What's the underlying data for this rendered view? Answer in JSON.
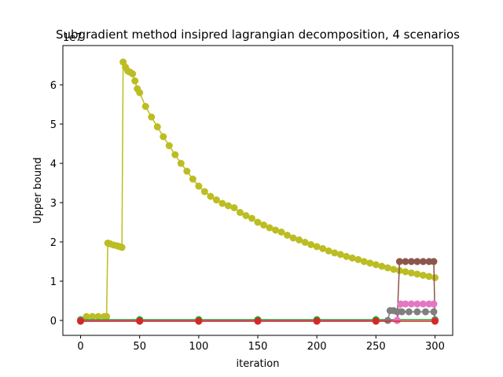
{
  "chart_data": {
    "type": "line",
    "title": "Subgradient method insipred lagrangian decomposition, 4 scenarios",
    "xlabel": "iteration",
    "ylabel": "Upper bound",
    "y_offset_label": "1e7",
    "xlim": [
      -15,
      315
    ],
    "ylim": [
      -0.38,
      7.0
    ],
    "xticks": [
      0,
      50,
      100,
      150,
      200,
      250,
      300
    ],
    "yticks": [
      0,
      1,
      2,
      3,
      4,
      5,
      6
    ],
    "grid": false,
    "series": [
      {
        "color": "#bcbd22",
        "marker": "o",
        "points": [
          [
            0,
            0.0
          ],
          [
            5,
            0.1
          ],
          [
            10,
            0.1
          ],
          [
            15,
            0.1
          ],
          [
            20,
            0.1
          ],
          [
            22,
            0.1
          ],
          [
            23,
            1.97
          ],
          [
            25,
            1.95
          ],
          [
            28,
            1.92
          ],
          [
            31,
            1.9
          ],
          [
            33,
            1.88
          ],
          [
            35,
            1.86
          ],
          [
            36,
            6.58
          ],
          [
            38,
            6.45
          ],
          [
            40,
            6.35
          ],
          [
            42,
            6.32
          ],
          [
            44,
            6.28
          ],
          [
            46,
            6.1
          ],
          [
            48,
            5.9
          ],
          [
            50,
            5.8
          ],
          [
            55,
            5.45
          ],
          [
            60,
            5.18
          ],
          [
            65,
            4.93
          ],
          [
            70,
            4.68
          ],
          [
            75,
            4.45
          ],
          [
            80,
            4.22
          ],
          [
            85,
            4.0
          ],
          [
            90,
            3.8
          ],
          [
            95,
            3.6
          ],
          [
            100,
            3.42
          ],
          [
            105,
            3.28
          ],
          [
            110,
            3.16
          ],
          [
            115,
            3.07
          ],
          [
            120,
            2.98
          ],
          [
            125,
            2.92
          ],
          [
            130,
            2.87
          ],
          [
            135,
            2.75
          ],
          [
            140,
            2.67
          ],
          [
            145,
            2.6
          ],
          [
            150,
            2.5
          ],
          [
            155,
            2.43
          ],
          [
            160,
            2.36
          ],
          [
            165,
            2.3
          ],
          [
            170,
            2.25
          ],
          [
            175,
            2.17
          ],
          [
            180,
            2.1
          ],
          [
            185,
            2.05
          ],
          [
            190,
            1.99
          ],
          [
            195,
            1.93
          ],
          [
            200,
            1.88
          ],
          [
            205,
            1.83
          ],
          [
            210,
            1.77
          ],
          [
            215,
            1.72
          ],
          [
            220,
            1.68
          ],
          [
            225,
            1.63
          ],
          [
            230,
            1.59
          ],
          [
            235,
            1.55
          ],
          [
            240,
            1.5
          ],
          [
            245,
            1.46
          ],
          [
            250,
            1.42
          ],
          [
            255,
            1.38
          ],
          [
            260,
            1.34
          ],
          [
            265,
            1.3
          ],
          [
            270,
            1.27
          ],
          [
            275,
            1.24
          ],
          [
            280,
            1.21
          ],
          [
            285,
            1.18
          ],
          [
            290,
            1.15
          ],
          [
            295,
            1.12
          ],
          [
            300,
            1.09
          ]
        ]
      },
      {
        "color": "#2ca02c",
        "marker": "o",
        "points": [
          [
            0,
            0.02
          ],
          [
            50,
            0.02
          ],
          [
            100,
            0.02
          ],
          [
            150,
            0.02
          ],
          [
            200,
            0.02
          ],
          [
            250,
            0.02
          ],
          [
            300,
            0.02
          ]
        ]
      },
      {
        "color": "#8c564b",
        "marker": "o",
        "points": [
          [
            0,
            0.0
          ],
          [
            268,
            0.0
          ],
          [
            270,
            1.5
          ],
          [
            275,
            1.5
          ],
          [
            280,
            1.5
          ],
          [
            285,
            1.5
          ],
          [
            290,
            1.5
          ],
          [
            295,
            1.5
          ],
          [
            299,
            1.5
          ],
          [
            300,
            0.0
          ]
        ]
      },
      {
        "color": "#e377c2",
        "marker": "o",
        "points": [
          [
            0,
            0.0
          ],
          [
            268,
            0.0
          ],
          [
            271,
            0.42
          ],
          [
            275,
            0.42
          ],
          [
            280,
            0.42
          ],
          [
            285,
            0.42
          ],
          [
            290,
            0.42
          ],
          [
            295,
            0.42
          ],
          [
            299,
            0.42
          ],
          [
            300,
            0.0
          ]
        ]
      },
      {
        "color": "#7f7f7f",
        "marker": "o",
        "points": [
          [
            0,
            0.0
          ],
          [
            260,
            0.0
          ],
          [
            262,
            0.25
          ],
          [
            265,
            0.25
          ],
          [
            268,
            0.22
          ],
          [
            272,
            0.22
          ],
          [
            278,
            0.22
          ],
          [
            285,
            0.22
          ],
          [
            292,
            0.22
          ],
          [
            299,
            0.22
          ],
          [
            300,
            0.0
          ]
        ]
      },
      {
        "color": "#d62728",
        "marker": "o",
        "points": [
          [
            0,
            -0.02
          ],
          [
            50,
            -0.02
          ],
          [
            100,
            -0.02
          ],
          [
            150,
            -0.02
          ],
          [
            200,
            -0.02
          ],
          [
            250,
            -0.02
          ],
          [
            300,
            -0.02
          ]
        ]
      }
    ]
  }
}
